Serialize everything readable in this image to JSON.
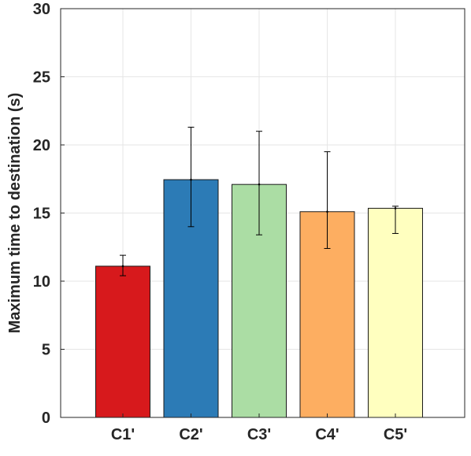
{
  "chart_data": {
    "type": "bar",
    "title": "",
    "xlabel": "",
    "ylabel": "Maximum time to destination (s)",
    "categories": [
      "C1'",
      "C2'",
      "C3'",
      "C4'",
      "C5'"
    ],
    "values": [
      11.1,
      17.45,
      17.1,
      15.1,
      15.35
    ],
    "error_low": [
      10.4,
      14.0,
      13.4,
      12.4,
      13.5
    ],
    "error_high": [
      11.9,
      21.3,
      21.0,
      19.5,
      15.5
    ],
    "colors": [
      "#d7191c",
      "#2c7bb6",
      "#abdda4",
      "#fdae61",
      "#ffffbf"
    ],
    "ylim": [
      0,
      30
    ],
    "yticks": [
      0,
      5,
      10,
      15,
      20,
      25,
      30
    ],
    "grid": true,
    "legend": "none"
  }
}
